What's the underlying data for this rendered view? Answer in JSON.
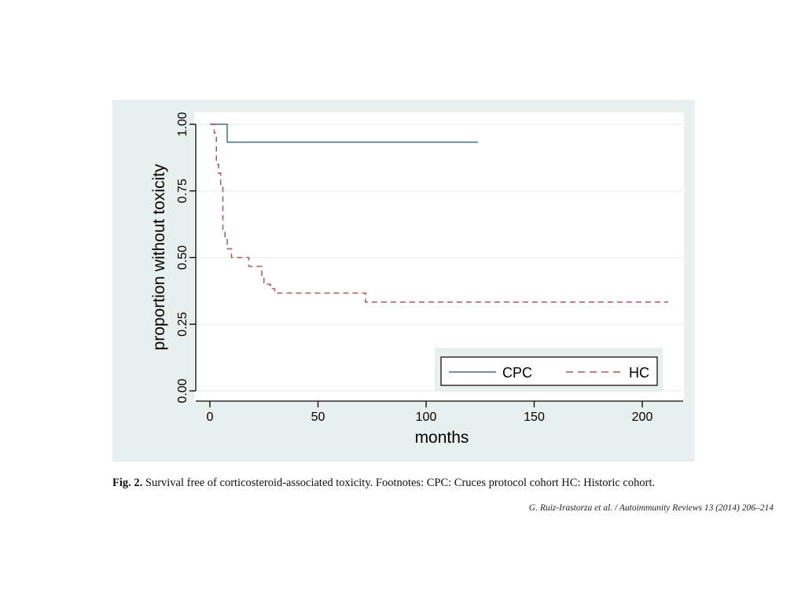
{
  "figure": {
    "caption_label": "Fig. 2.",
    "caption_text": " Survival free of corticosteroid-associated toxicity. Footnotes: CPC: Cruces protocol cohort HC: Historic cohort.",
    "citation": "G. Ruiz-Irastorza et al. / Autoimmunity Reviews 13 (2014) 206–214"
  },
  "chart_data": {
    "type": "line",
    "title": "",
    "xlabel": "months",
    "ylabel": "proportion without toxicity",
    "xlim": [
      0,
      215
    ],
    "ylim": [
      0,
      1
    ],
    "x_ticks": [
      0,
      50,
      100,
      150,
      200
    ],
    "y_ticks": [
      0,
      0.25,
      0.5,
      0.75,
      1
    ],
    "y_tick_labels": [
      "0.00",
      "0.25",
      "0.50",
      "0.75",
      "1.00"
    ],
    "step": true,
    "grid": true,
    "legend_position": "bottom-right",
    "series": [
      {
        "name": "CPC",
        "color": "#4e6a80",
        "dash": "solid",
        "x": [
          0,
          8,
          124
        ],
        "y": [
          1.0,
          0.933,
          0.933
        ]
      },
      {
        "name": "HC",
        "color": "#a8585a",
        "dash": "dashed",
        "x": [
          0,
          2,
          3,
          4,
          5,
          6,
          7,
          8,
          10,
          18,
          24,
          25,
          28,
          30,
          72,
          212
        ],
        "y": [
          1.0,
          0.967,
          0.85,
          0.817,
          0.767,
          0.6,
          0.567,
          0.533,
          0.5,
          0.467,
          0.433,
          0.4,
          0.383,
          0.367,
          0.333,
          0.333
        ]
      }
    ]
  }
}
